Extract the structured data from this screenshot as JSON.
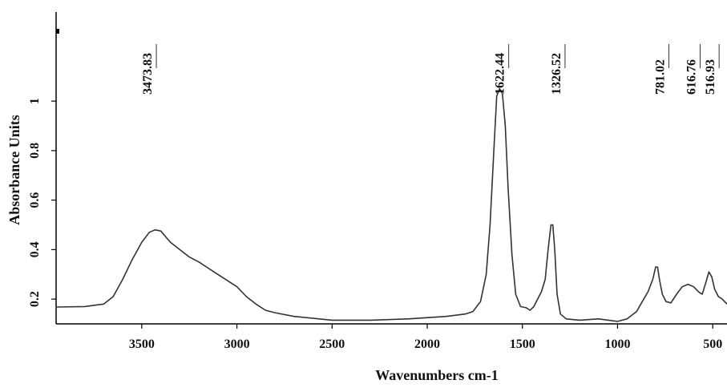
{
  "chart_data": {
    "type": "line",
    "xlabel": "Wavenumbers cm-1",
    "ylabel": "Absorbance Units",
    "xlim": [
      3950,
      425
    ],
    "ylim": [
      0.1,
      1.36
    ],
    "xticks": [
      3500,
      3000,
      2500,
      2000,
      1500,
      1000,
      500
    ],
    "yticks": [
      0.2,
      0.4,
      0.6,
      0.8,
      1
    ],
    "annotations": [
      "3473.83",
      "1622.44",
      "1326.52",
      "781.02",
      "616.76",
      "516.93"
    ],
    "series": [
      {
        "color": "#333333",
        "x": [
          3950,
          3800,
          3700,
          3650,
          3600,
          3550,
          3500,
          3460,
          3430,
          3400,
          3350,
          3300,
          3250,
          3200,
          3100,
          3000,
          2950,
          2900,
          2850,
          2800,
          2700,
          2500,
          2300,
          2100,
          1900,
          1800,
          1760,
          1720,
          1690,
          1670,
          1650,
          1635,
          1620,
          1605,
          1590,
          1575,
          1555,
          1535,
          1510,
          1480,
          1460,
          1440,
          1420,
          1400,
          1380,
          1365,
          1350,
          1340,
          1330,
          1318,
          1300,
          1270,
          1200,
          1100,
          1000,
          950,
          900,
          870,
          840,
          815,
          800,
          790,
          780,
          765,
          745,
          720,
          690,
          660,
          630,
          600,
          575,
          555,
          535,
          520,
          505,
          490,
          470,
          450,
          425
        ],
        "values": [
          0.168,
          0.17,
          0.18,
          0.21,
          0.28,
          0.36,
          0.43,
          0.47,
          0.48,
          0.475,
          0.43,
          0.4,
          0.37,
          0.35,
          0.3,
          0.25,
          0.21,
          0.18,
          0.155,
          0.145,
          0.13,
          0.115,
          0.115,
          0.12,
          0.13,
          0.14,
          0.15,
          0.19,
          0.3,
          0.5,
          0.8,
          1.02,
          1.05,
          1.03,
          0.9,
          0.65,
          0.38,
          0.22,
          0.17,
          0.165,
          0.155,
          0.17,
          0.2,
          0.23,
          0.28,
          0.4,
          0.5,
          0.5,
          0.4,
          0.22,
          0.14,
          0.12,
          0.115,
          0.12,
          0.11,
          0.12,
          0.15,
          0.19,
          0.23,
          0.28,
          0.33,
          0.33,
          0.28,
          0.22,
          0.19,
          0.185,
          0.22,
          0.25,
          0.26,
          0.25,
          0.23,
          0.22,
          0.27,
          0.31,
          0.29,
          0.24,
          0.21,
          0.2,
          0.18
        ]
      }
    ]
  }
}
